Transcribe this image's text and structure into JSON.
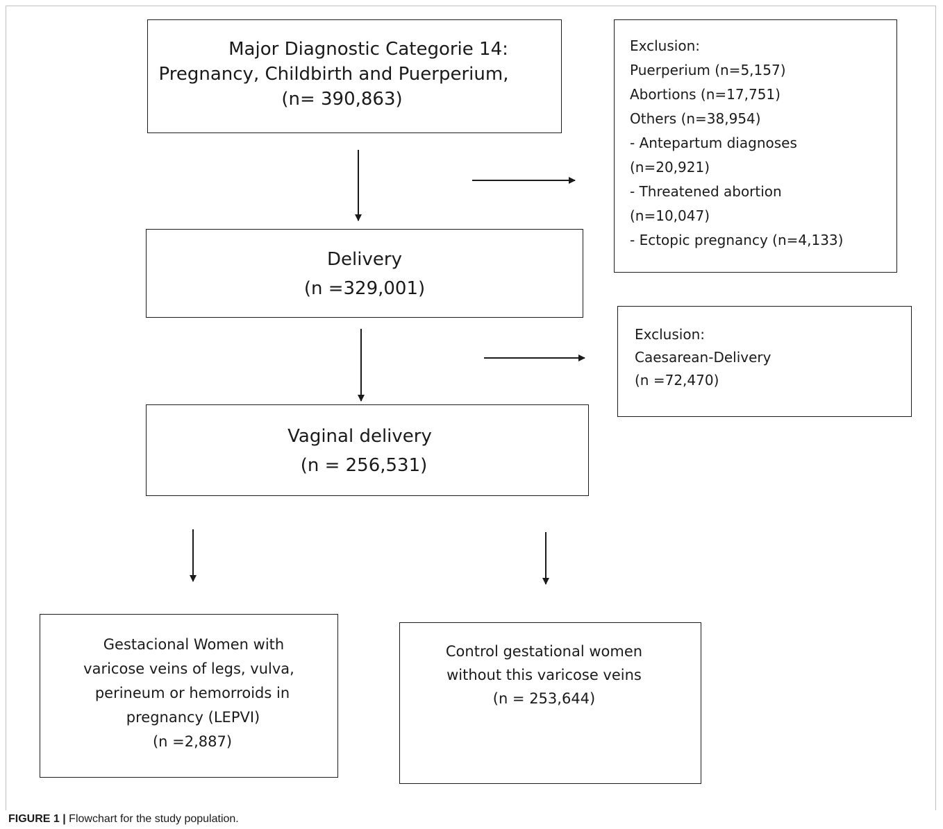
{
  "boxes": {
    "mdc": {
      "lines": [
        "Major Diagnostic Categorie 14:",
        "Pregnancy, Childbirth and Puerperium,",
        "(n= 390,863)"
      ]
    },
    "exclusion1": {
      "lines": [
        "Exclusion:",
        "Puerperium (n=5,157)",
        "Abortions (n=17,751)",
        "Others (n=38,954)",
        "- Antepartum diagnoses",
        "(n=20,921)",
        "- Threatened abortion",
        "(n=10,047)",
        "- Ectopic pregnancy (n=4,133)"
      ]
    },
    "delivery": {
      "lines": [
        "Delivery",
        "(n =329,001)"
      ]
    },
    "exclusion2": {
      "lines": [
        "Exclusion:",
        "Caesarean-Delivery",
        "(n =72,470)"
      ]
    },
    "vaginal": {
      "lines": [
        "Vaginal delivery",
        "(n = 256,531)"
      ]
    },
    "lepvi": {
      "lines": [
        "Gestacional Women with",
        "varicose veins of legs, vulva,",
        "perineum or hemorroids in",
        "pregnancy (LEPVI)",
        "(n =2,887)"
      ]
    },
    "control": {
      "lines": [
        "Control gestational women",
        "without this varicose veins",
        "(n = 253,644)"
      ]
    }
  },
  "caption": {
    "label": "FIGURE 1 |",
    "text": " Flowchart for the study population."
  },
  "colors": {
    "stroke": "#1a1a1a",
    "frame": "#bfbfbf"
  }
}
